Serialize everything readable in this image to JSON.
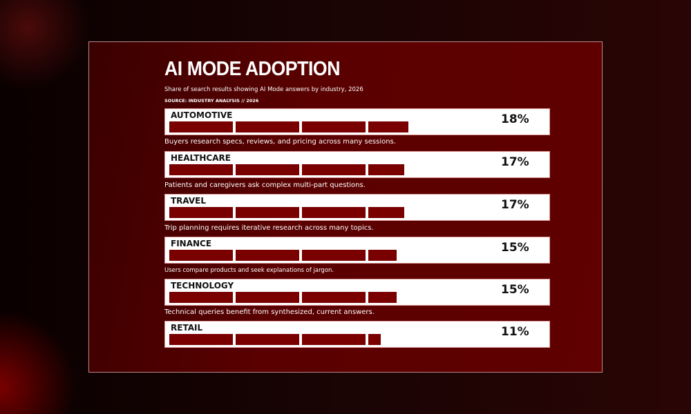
{
  "chart_data": {
    "type": "bar",
    "title": "AI MODE ADOPTION",
    "subtitle": "Share of search results showing AI Mode answers by industry, 2026",
    "source": "SOURCE: INDUSTRY ANALYSIS // 2026",
    "categories": [
      "AUTOMOTIVE",
      "HEALTHCARE",
      "TRAVEL",
      "FINANCE",
      "TECHNOLOGY",
      "RETAIL"
    ],
    "values": [
      18,
      17,
      17,
      15,
      15,
      11
    ],
    "value_labels": [
      "18%",
      "17%",
      "17%",
      "15%",
      "15%",
      "11%"
    ],
    "descriptions": [
      "Buyers research specs, reviews, and pricing across many sessions.",
      "Patients and caregivers ask complex multi-part questions.",
      "Trip planning requires iterative research across many topics.",
      "Users compare products and seek explanations of jargon.",
      "Technical queries benefit from synthesized, current answers."
    ],
    "bar_color": "#7a0000"
  }
}
